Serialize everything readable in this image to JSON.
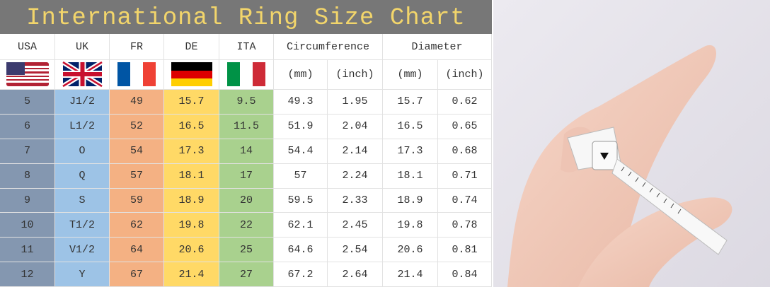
{
  "title": "International Ring Size Chart",
  "table": {
    "headers": [
      "USA",
      "UK",
      "FR",
      "DE",
      "ITA",
      "Circumference",
      "Diameter"
    ],
    "units": [
      "(mm)",
      "(inch)",
      "(mm)",
      "(inch)"
    ],
    "rows": [
      [
        "5",
        "J1/2",
        "49",
        "15.7",
        "9.5",
        "49.3",
        "1.95",
        "15.7",
        "0.62"
      ],
      [
        "6",
        "L1/2",
        "52",
        "16.5",
        "11.5",
        "51.9",
        "2.04",
        "16.5",
        "0.65"
      ],
      [
        "7",
        "O",
        "54",
        "17.3",
        "14",
        "54.4",
        "2.14",
        "17.3",
        "0.68"
      ],
      [
        "8",
        "Q",
        "57",
        "18.1",
        "17",
        "57",
        "2.24",
        "18.1",
        "0.71"
      ],
      [
        "9",
        "S",
        "59",
        "18.9",
        "20",
        "59.5",
        "2.33",
        "18.9",
        "0.74"
      ],
      [
        "10",
        "T1/2",
        "62",
        "19.8",
        "22",
        "62.1",
        "2.45",
        "19.8",
        "0.78"
      ],
      [
        "11",
        "V1/2",
        "64",
        "20.6",
        "25",
        "64.6",
        "2.54",
        "20.6",
        "0.81"
      ],
      [
        "12",
        "Y",
        "67",
        "21.4",
        "27",
        "67.2",
        "2.64",
        "21.4",
        "0.84"
      ]
    ]
  }
}
